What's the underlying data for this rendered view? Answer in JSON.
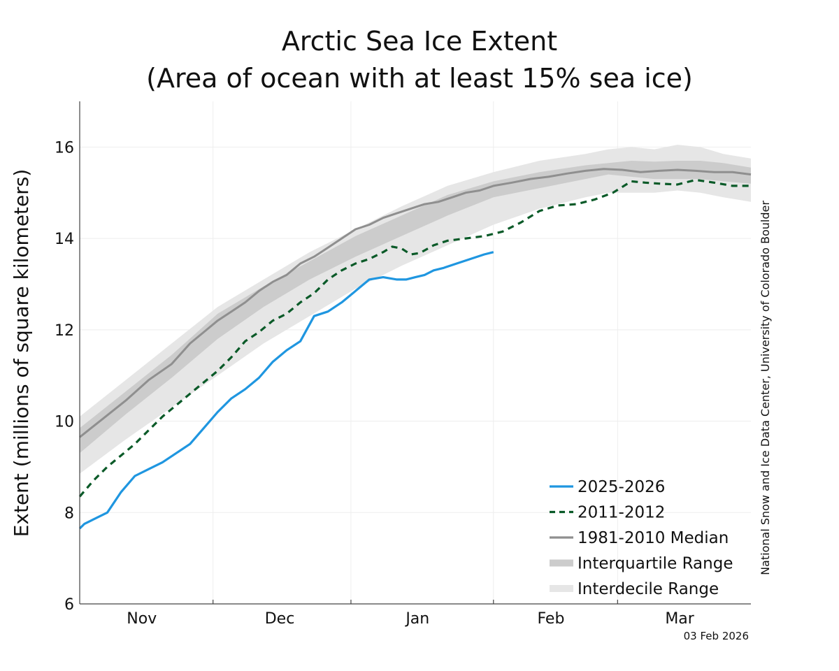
{
  "chart_data": {
    "type": "line",
    "title": [
      "Arctic Sea Ice Extent",
      "(Area of ocean with at least 15% sea ice)"
    ],
    "ylabel": "Extent (millions of square kilometers)",
    "ylim": [
      6,
      17
    ],
    "yticks": [
      6,
      8,
      10,
      12,
      14,
      16
    ],
    "xlim": [
      0,
      146
    ],
    "month_boundaries": [
      0,
      29,
      59,
      90,
      117,
      146
    ],
    "month_labels": [
      {
        "label": "Nov",
        "x": 13.5
      },
      {
        "label": "Dec",
        "x": 43.5
      },
      {
        "label": "Jan",
        "x": 73.5
      },
      {
        "label": "Feb",
        "x": 102.5
      },
      {
        "label": "Mar",
        "x": 130.5
      }
    ],
    "x_unit": "days since Oct 17",
    "credit": "National Snow and Ice Data Center, University of Colorado Boulder",
    "date_stamp": "03 Feb 2026",
    "legend": [
      {
        "label": "2025-2026",
        "style": "line",
        "color": "#1f96e0"
      },
      {
        "label": "2011-2012",
        "style": "dashed",
        "color": "#0a5a28"
      },
      {
        "label": "1981-2010 Median",
        "style": "line",
        "color": "#8f8f8f"
      },
      {
        "label": "Interquartile Range",
        "style": "band",
        "color": "#cccccc"
      },
      {
        "label": "Interdecile Range",
        "style": "band",
        "color": "#e6e6e6"
      }
    ],
    "colors": {
      "current": "#1f96e0",
      "y2012": "#0a5a28",
      "median": "#8f8f8f",
      "iqr": "#cccccc",
      "idr": "#e6e6e6",
      "grid": "#eeeeee",
      "axis": "#444444"
    },
    "series": [
      {
        "name": "2025-2026",
        "x": [
          0,
          1,
          3,
          6,
          9,
          12,
          15,
          18,
          21,
          24,
          27,
          30,
          33,
          36,
          39,
          42,
          45,
          48,
          51,
          54,
          57,
          60,
          63,
          66,
          69,
          71,
          73,
          75,
          77,
          79,
          82,
          85,
          88,
          90
        ],
        "y": [
          7.65,
          7.75,
          7.85,
          8.0,
          8.45,
          8.8,
          8.95,
          9.1,
          9.3,
          9.5,
          9.85,
          10.2,
          10.5,
          10.7,
          10.95,
          11.3,
          11.55,
          11.75,
          12.3,
          12.4,
          12.6,
          12.85,
          13.1,
          13.15,
          13.1,
          13.1,
          13.15,
          13.2,
          13.3,
          13.35,
          13.45,
          13.55,
          13.65,
          13.7
        ]
      },
      {
        "name": "2011-2012",
        "x": [
          0,
          3,
          6,
          9,
          12,
          15,
          18,
          21,
          24,
          27,
          30,
          33,
          36,
          39,
          42,
          45,
          48,
          51,
          54,
          57,
          60,
          63,
          66,
          68,
          70,
          72,
          74,
          77,
          80,
          84,
          88,
          92,
          96,
          100,
          104,
          108,
          112,
          116,
          120,
          123,
          126,
          130,
          134,
          138,
          142,
          146
        ],
        "y": [
          8.35,
          8.7,
          9.0,
          9.25,
          9.5,
          9.8,
          10.1,
          10.35,
          10.6,
          10.85,
          11.1,
          11.4,
          11.75,
          11.95,
          12.2,
          12.35,
          12.6,
          12.8,
          13.1,
          13.3,
          13.45,
          13.55,
          13.7,
          13.82,
          13.78,
          13.65,
          13.68,
          13.85,
          13.95,
          14.0,
          14.05,
          14.15,
          14.35,
          14.6,
          14.72,
          14.75,
          14.85,
          15.0,
          15.25,
          15.22,
          15.2,
          15.18,
          15.28,
          15.22,
          15.15,
          15.15
        ]
      },
      {
        "name": "1981-2010 Median",
        "x": [
          0,
          5,
          10,
          15,
          20,
          24,
          27,
          30,
          33,
          36,
          39,
          42,
          45,
          48,
          51,
          54,
          57,
          60,
          63,
          66,
          69,
          72,
          75,
          78,
          81,
          84,
          87,
          90,
          94,
          98,
          102,
          106,
          110,
          114,
          118,
          122,
          126,
          130,
          134,
          138,
          142,
          146
        ],
        "y": [
          9.65,
          10.05,
          10.45,
          10.9,
          11.25,
          11.7,
          11.95,
          12.2,
          12.4,
          12.6,
          12.85,
          13.05,
          13.2,
          13.45,
          13.6,
          13.8,
          14.0,
          14.2,
          14.3,
          14.45,
          14.55,
          14.65,
          14.75,
          14.8,
          14.9,
          15.0,
          15.05,
          15.15,
          15.22,
          15.3,
          15.35,
          15.42,
          15.48,
          15.52,
          15.5,
          15.45,
          15.48,
          15.5,
          15.48,
          15.45,
          15.45,
          15.4
        ]
      }
    ],
    "bands": [
      {
        "name": "Interdecile Range",
        "x": [
          0,
          10,
          20,
          30,
          40,
          50,
          60,
          70,
          80,
          90,
          100,
          110,
          115,
          120,
          125,
          130,
          135,
          140,
          146
        ],
        "upper": [
          10.1,
          10.9,
          11.7,
          12.5,
          13.1,
          13.7,
          14.2,
          14.7,
          15.15,
          15.45,
          15.7,
          15.85,
          15.95,
          16.0,
          15.95,
          16.05,
          16.0,
          15.85,
          15.75
        ],
        "lower": [
          8.85,
          9.6,
          10.3,
          11.0,
          11.7,
          12.3,
          12.9,
          13.4,
          13.85,
          14.3,
          14.65,
          14.9,
          15.0,
          15.0,
          15.0,
          15.05,
          15.0,
          14.9,
          14.8
        ]
      },
      {
        "name": "Interquartile Range",
        "x": [
          0,
          10,
          20,
          30,
          40,
          50,
          60,
          70,
          80,
          90,
          100,
          110,
          115,
          120,
          125,
          130,
          135,
          140,
          146
        ],
        "upper": [
          9.85,
          10.65,
          11.45,
          12.35,
          12.95,
          13.5,
          14.05,
          14.5,
          14.95,
          15.25,
          15.45,
          15.6,
          15.65,
          15.7,
          15.68,
          15.7,
          15.7,
          15.65,
          15.55
        ],
        "lower": [
          9.3,
          10.15,
          10.95,
          11.8,
          12.5,
          13.1,
          13.6,
          14.05,
          14.5,
          14.9,
          15.1,
          15.3,
          15.4,
          15.35,
          15.3,
          15.3,
          15.3,
          15.25,
          15.2
        ]
      }
    ]
  }
}
